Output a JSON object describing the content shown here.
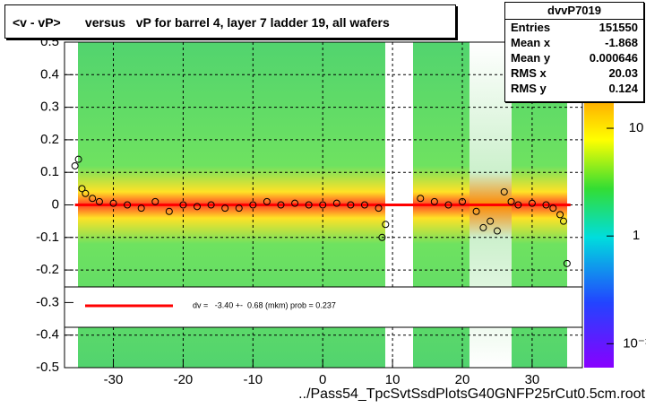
{
  "chart_data": {
    "type": "profile2d",
    "title": "<v - vP>       versus   vP for barrel 4, layer 7 ladder 19, all wafers",
    "x_label": "../Pass54_TpcSvtSsdPlotsG40GNFP25rCut0.5cm.root",
    "xlim": [
      -37,
      37.2
    ],
    "ylim": [
      -0.5,
      0.5
    ],
    "xticks": [
      -30,
      -20,
      -10,
      0,
      10,
      20,
      30
    ],
    "yticks": [
      -0.5,
      -0.4,
      -0.3,
      -0.2,
      -0.1,
      0,
      0.1,
      0.2,
      0.3,
      0.4,
      0.5
    ],
    "grid": true,
    "zlog": true,
    "zlim": [
      0.06,
      63
    ],
    "zticks": [
      10,
      1,
      {
        "value": 0.1,
        "label": "10⁻¹"
      }
    ],
    "profile": {
      "color": "#000000",
      "x": [
        -35.5,
        -35,
        -34.5,
        -34,
        -33,
        -32,
        -30,
        -28,
        -26,
        -24,
        -22,
        -20,
        -18,
        -16,
        -14,
        -12,
        -10,
        -8,
        -6,
        -4,
        -2,
        0,
        2,
        4,
        6,
        8,
        8.5,
        9,
        14,
        16,
        18,
        20,
        22,
        23,
        24,
        25,
        26,
        27,
        28,
        30,
        32,
        33,
        34,
        34.5,
        35
      ],
      "values": [
        0.12,
        0.14,
        0.05,
        0.035,
        0.02,
        0.01,
        0.005,
        0,
        -0.01,
        0.01,
        -0.02,
        0,
        -0.005,
        0,
        -0.01,
        -0.01,
        0,
        0.01,
        0,
        0.005,
        0,
        0,
        0.005,
        0,
        0,
        -0.01,
        -0.1,
        -0.06,
        0.02,
        0.01,
        0,
        0.01,
        -0.02,
        -0.07,
        -0.05,
        -0.08,
        0.04,
        0.01,
        0,
        0.005,
        0,
        -0.01,
        -0.03,
        -0.05,
        -0.18
      ]
    },
    "fit": {
      "color": "#ff0000",
      "x": [
        -35.5,
        35.5
      ],
      "values": [
        0,
        0
      ]
    },
    "fit_label": "dv =   -3.40 +-  0.68 (mkm) prob = 0.237",
    "stats": {
      "title": "dvvP7019",
      "rows": [
        [
          "Entries",
          "151550"
        ],
        [
          "Mean x",
          "-1.868"
        ],
        [
          "Mean y",
          "0.000646"
        ],
        [
          "RMS x",
          "20.03"
        ],
        [
          "RMS y",
          "0.124"
        ]
      ]
    }
  }
}
